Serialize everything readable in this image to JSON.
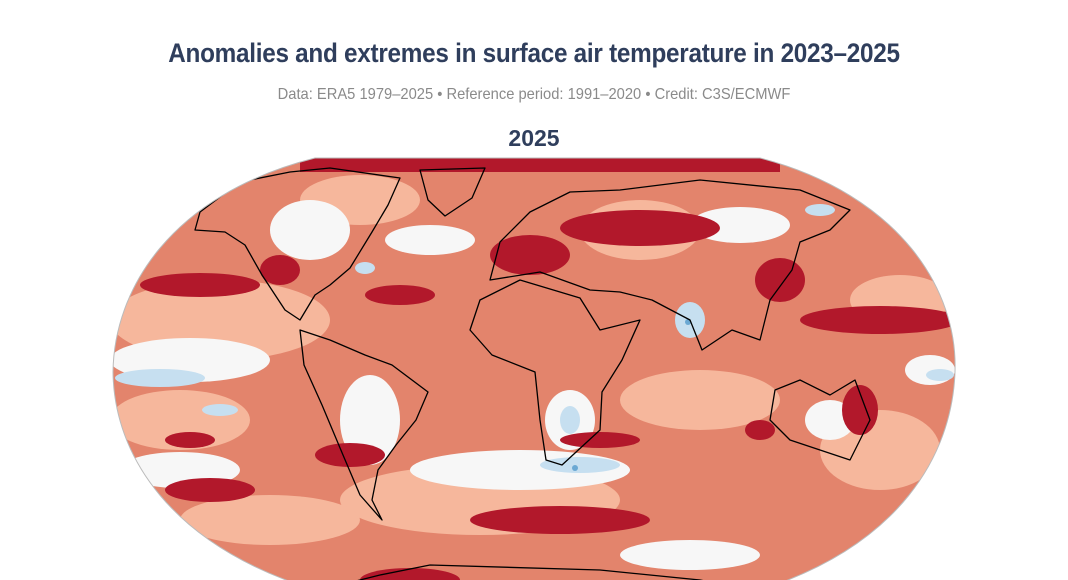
{
  "header": {
    "title": "Anomalies and extremes in surface air temperature in 2023–2025",
    "subtitle": "Data: ERA5 1979–2025 • Reference period: 1991–2020 • Credit: C3S/ECMWF"
  },
  "panel": {
    "year_label": "2025"
  },
  "colors": {
    "extreme_warm": "#b2182b",
    "warm": "#e3846c",
    "mild_warm": "#f6b79c",
    "neutral": "#f7f7f7",
    "mild_cool": "#c6dff0",
    "cool": "#6aa8d3",
    "title": "#2f3e5c",
    "coastline": "#000000"
  }
}
